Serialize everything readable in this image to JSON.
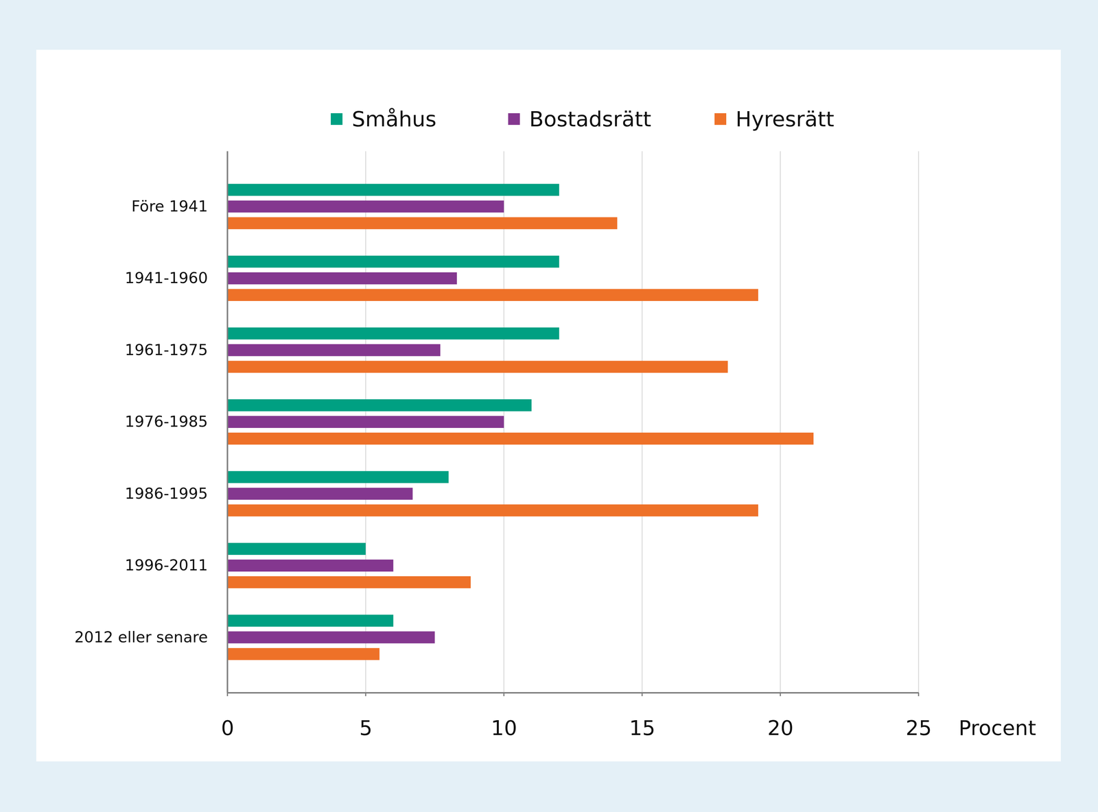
{
  "chart_data": {
    "type": "bar",
    "orientation": "horizontal",
    "categories": [
      "Före 1941",
      "1941-1960",
      "1961-1975",
      "1976-1985",
      "1986-1995",
      "1996-2011",
      "2012 eller senare"
    ],
    "series": [
      {
        "name": "Småhus",
        "color": "#00a082",
        "values": [
          12.0,
          12.0,
          12.0,
          11.0,
          8.0,
          5.0,
          6.0
        ]
      },
      {
        "name": "Bostadsrätt",
        "color": "#84378f",
        "values": [
          10.0,
          8.3,
          7.7,
          10.0,
          6.7,
          6.0,
          7.5
        ]
      },
      {
        "name": "Hyresrätt",
        "color": "#ee7128",
        "values": [
          14.1,
          19.2,
          18.1,
          21.2,
          19.2,
          8.8,
          5.5
        ]
      }
    ],
    "xlim": [
      0,
      25
    ],
    "xticks": [
      0,
      5,
      10,
      15,
      20,
      25
    ],
    "xlabel": "Procent",
    "grid": true,
    "legend": "top"
  }
}
